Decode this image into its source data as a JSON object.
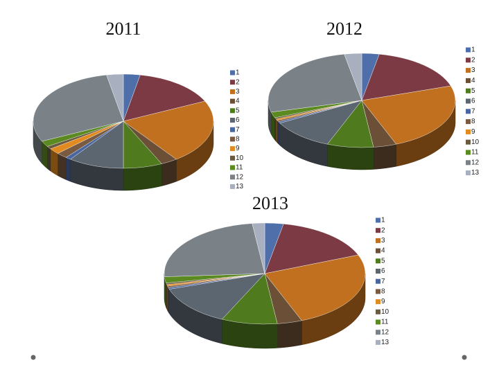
{
  "chart_data": [
    {
      "type": "pie",
      "title": "2011",
      "categories": [
        "1",
        "2",
        "3",
        "4",
        "5",
        "6",
        "7",
        "8",
        "9",
        "10",
        "11",
        "12",
        "13"
      ],
      "values": [
        3,
        15,
        22,
        3,
        7,
        10,
        1,
        2,
        2,
        1,
        2,
        29,
        3
      ],
      "colors": [
        "#4f6fab",
        "#7b3a44",
        "#c0701e",
        "#6b5037",
        "#4f7a1e",
        "#5c6670",
        "#4a66a0",
        "#7a5a40",
        "#e08a20",
        "#6a5a40",
        "#5a8a20",
        "#7a8288",
        "#a8b0c0"
      ]
    },
    {
      "type": "pie",
      "title": "2012",
      "categories": [
        "1",
        "2",
        "3",
        "4",
        "5",
        "6",
        "7",
        "8",
        "9",
        "10",
        "11",
        "12",
        "13"
      ],
      "values": [
        3,
        17,
        24,
        4,
        8,
        11,
        0.5,
        0.5,
        0.5,
        0.5,
        2,
        26,
        3
      ],
      "colors": [
        "#4f6fab",
        "#7b3a44",
        "#c0701e",
        "#6b5037",
        "#4f7a1e",
        "#5c6670",
        "#4a66a0",
        "#7a5a40",
        "#e08a20",
        "#6a5a40",
        "#5a8a20",
        "#7a8288",
        "#a8b0c0"
      ]
    },
    {
      "type": "pie",
      "title": "2013",
      "categories": [
        "1",
        "2",
        "3",
        "4",
        "5",
        "6",
        "7",
        "8",
        "9",
        "10",
        "11",
        "12",
        "13"
      ],
      "values": [
        3,
        16,
        25,
        4,
        9,
        13,
        0.5,
        0.5,
        0.5,
        0.5,
        2,
        24,
        2
      ],
      "colors": [
        "#4f6fab",
        "#7b3a44",
        "#c0701e",
        "#6b5037",
        "#4f7a1e",
        "#5c6670",
        "#4a66a0",
        "#7a5a40",
        "#e08a20",
        "#6a5a40",
        "#5a8a20",
        "#7a8288",
        "#a8b0c0"
      ]
    }
  ]
}
